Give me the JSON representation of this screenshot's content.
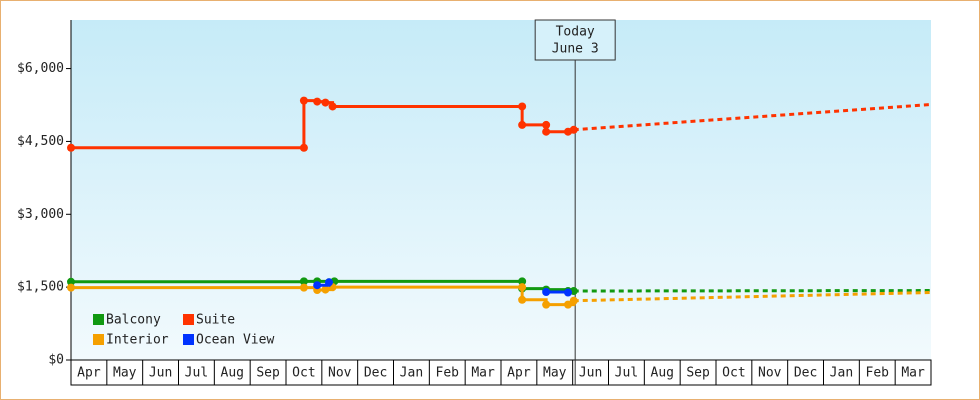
{
  "chart_data": {
    "type": "step",
    "categories": [
      "Apr",
      "May",
      "Jun",
      "Jul",
      "Aug",
      "Sep",
      "Oct",
      "Nov",
      "Dec",
      "Jan",
      "Feb",
      "Mar",
      "Apr",
      "May",
      "Jun",
      "Jul",
      "Aug",
      "Sep",
      "Oct",
      "Nov",
      "Dec",
      "Jan",
      "Feb",
      "Mar"
    ],
    "xlim": [
      0,
      24
    ],
    "ylim": [
      0,
      7000
    ],
    "yticks": [
      {
        "value": 0,
        "label": "$0"
      },
      {
        "value": 1500,
        "label": "$1,500"
      },
      {
        "value": 3000,
        "label": "$3,000"
      },
      {
        "value": 4500,
        "label": "$4,500"
      },
      {
        "value": 6000,
        "label": "$6,000"
      }
    ],
    "today": {
      "x": 14.07,
      "label": "Today",
      "date": "June 3"
    },
    "series": [
      {
        "name": "Balcony",
        "color": "#119911",
        "x": [
          0,
          6.5,
          6.87,
          7.2,
          7.35,
          12.59,
          12.59,
          13.26,
          13.87,
          14.03
        ],
        "values": [
          1610,
          1620,
          1620,
          1600,
          1620,
          1620,
          1470,
          1450,
          1420,
          1420
        ],
        "forecast": {
          "x": [
            14.03,
            24
          ],
          "values": [
            1420,
            1430
          ]
        }
      },
      {
        "name": "Suite",
        "color": "#ff3300",
        "x": [
          0,
          6.5,
          6.5,
          6.87,
          7.1,
          7.3,
          12.59,
          12.59,
          13.26,
          13.26,
          13.87,
          14.03
        ],
        "values": [
          4370,
          4370,
          5340,
          5320,
          5300,
          5220,
          5220,
          4840,
          4840,
          4700,
          4700,
          4740
        ],
        "forecast": {
          "x": [
            14.03,
            24
          ],
          "values": [
            4740,
            5260
          ]
        }
      },
      {
        "name": "Interior",
        "color": "#f5a000",
        "x": [
          0,
          6.5,
          6.87,
          7.1,
          7.3,
          12.59,
          12.59,
          13.26,
          13.87,
          14.03
        ],
        "values": [
          1490,
          1490,
          1440,
          1450,
          1500,
          1500,
          1240,
          1140,
          1140,
          1220
        ],
        "forecast": {
          "x": [
            14.03,
            24
          ],
          "values": [
            1220,
            1390
          ]
        }
      },
      {
        "name": "Ocean View",
        "color": "#0033ff",
        "x": [
          6.87,
          7.2,
          null,
          13.26,
          13.87
        ],
        "values": [
          1540,
          1600,
          null,
          1400,
          1390
        ]
      }
    ]
  }
}
